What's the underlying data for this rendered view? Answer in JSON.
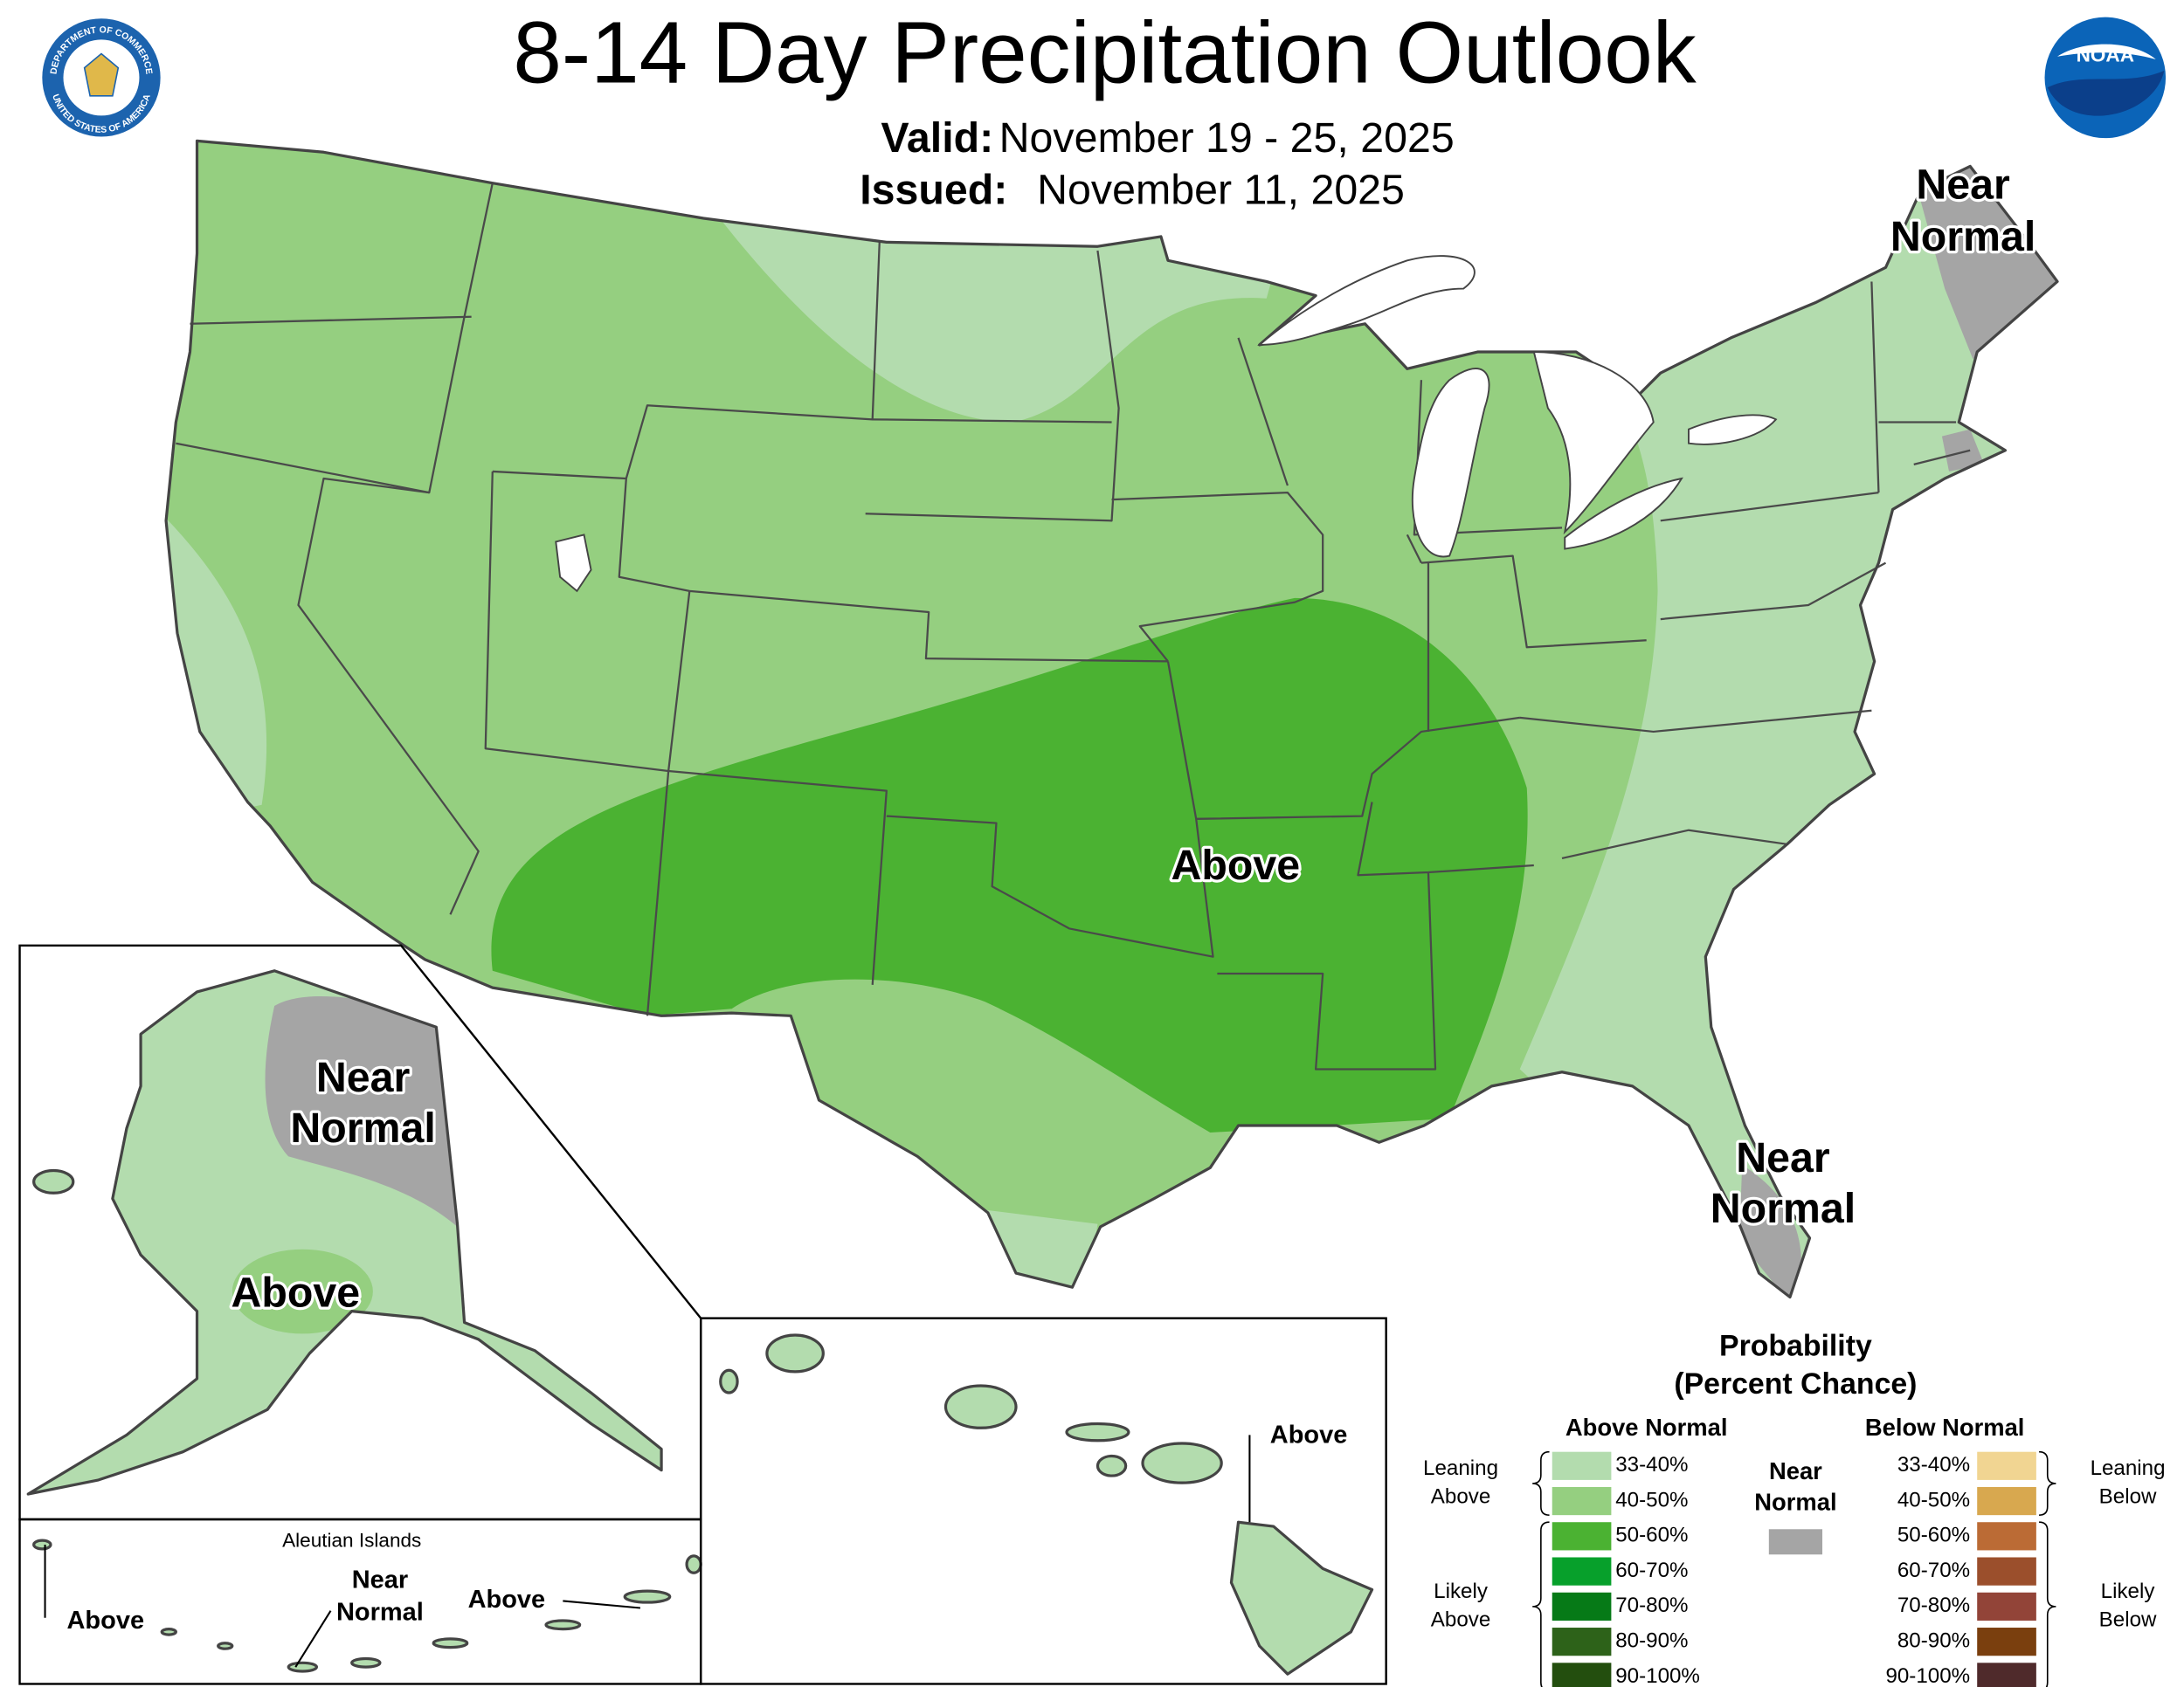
{
  "header": {
    "title": "8-14 Day Precipitation Outlook",
    "valid_label": "Valid:",
    "valid": "November 19 - 25, 2025",
    "issued_label": "Issued:",
    "issued": "November 11, 2025"
  },
  "logos": {
    "seal_top": "DEPARTMENT OF COMMERCE",
    "seal_bottom": "UNITED STATES OF AMERICA",
    "noaa": "NOAA"
  },
  "map_labels": [
    {
      "lines": [
        "Near",
        "Normal"
      ]
    },
    {
      "lines": [
        "Above"
      ]
    },
    {
      "lines": [
        "Near",
        "Normal"
      ]
    },
    {
      "lines": [
        "Near",
        "Normal"
      ]
    },
    {
      "lines": [
        "Above"
      ]
    }
  ],
  "aleutians": {
    "title": "Aleutian Islands",
    "labels": [
      {
        "lines": [
          "Above"
        ]
      },
      {
        "lines": [
          "Near",
          "Normal"
        ]
      },
      {
        "lines": [
          "Above"
        ]
      }
    ]
  },
  "hawaii": {
    "label": "Above"
  },
  "legend": {
    "title": [
      "Probability",
      "(Percent Chance)"
    ],
    "above": {
      "title": "Above Normal",
      "groups": [
        {
          "lines": [
            "Leaning",
            "Above"
          ]
        },
        {
          "lines": [
            "Likely",
            "Above"
          ]
        }
      ],
      "items": [
        {
          "label": "33-40%",
          "color": "#b3dcae"
        },
        {
          "label": "40-50%",
          "color": "#95cf80"
        },
        {
          "label": "50-60%",
          "color": "#4bb232"
        },
        {
          "label": "60-70%",
          "color": "#07a02b"
        },
        {
          "label": "70-80%",
          "color": "#067a17"
        },
        {
          "label": "80-90%",
          "color": "#2d6219"
        },
        {
          "label": "90-100%",
          "color": "#234e0e"
        }
      ]
    },
    "below": {
      "title": "Below Normal",
      "groups": [
        {
          "lines": [
            "Leaning",
            "Below"
          ]
        },
        {
          "lines": [
            "Likely",
            "Below"
          ]
        }
      ],
      "items": [
        {
          "label": "33-40%",
          "color": "#f1d592"
        },
        {
          "label": "40-50%",
          "color": "#d8a84f"
        },
        {
          "label": "50-60%",
          "color": "#bb6b35"
        },
        {
          "label": "60-70%",
          "color": "#9b4f2c"
        },
        {
          "label": "70-80%",
          "color": "#924438"
        },
        {
          "label": "80-90%",
          "color": "#7a3f0e"
        },
        {
          "label": "90-100%",
          "color": "#4f2a2b"
        }
      ]
    },
    "near": {
      "lines": [
        "Near",
        "Normal"
      ],
      "color": "#a5a5a5"
    }
  }
}
